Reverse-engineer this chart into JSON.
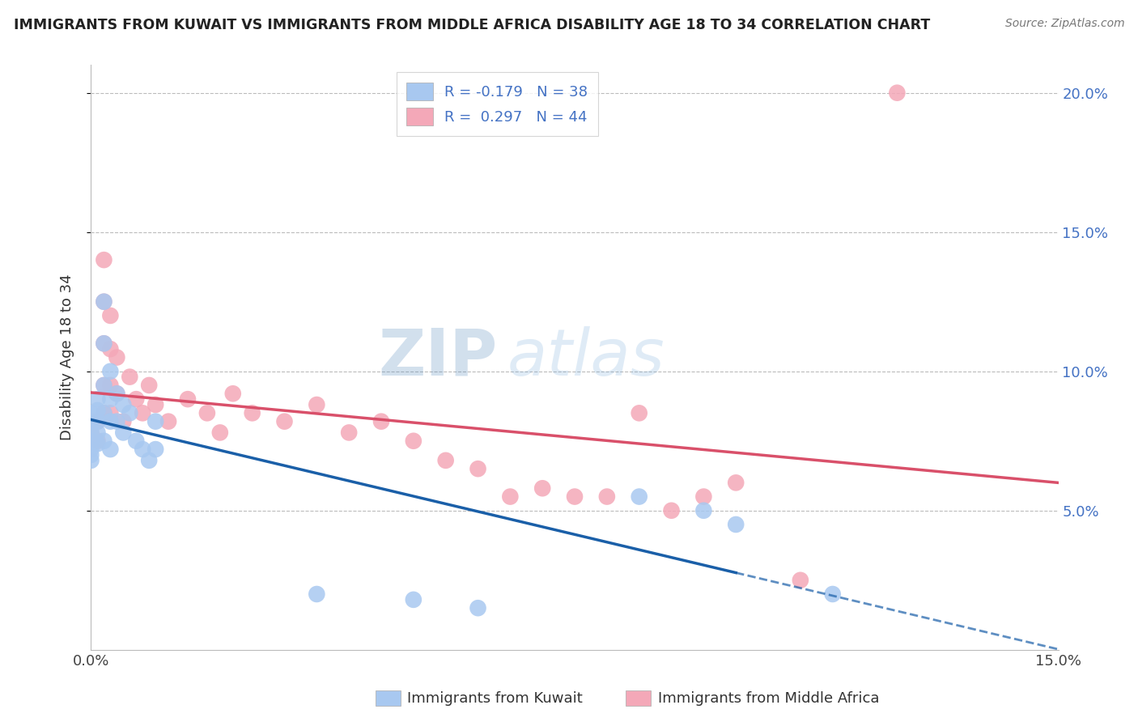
{
  "title": "IMMIGRANTS FROM KUWAIT VS IMMIGRANTS FROM MIDDLE AFRICA DISABILITY AGE 18 TO 34 CORRELATION CHART",
  "source": "Source: ZipAtlas.com",
  "ylabel": "Disability Age 18 to 34",
  "r_kuwait": -0.179,
  "n_kuwait": 38,
  "r_africa": 0.297,
  "n_africa": 44,
  "legend_label_1": "Immigrants from Kuwait",
  "legend_label_2": "Immigrants from Middle Africa",
  "color_kuwait": "#a8c8f0",
  "color_africa": "#f4a8b8",
  "line_color_kuwait": "#1a5fa8",
  "line_color_africa": "#d9506a",
  "watermark_zip": "ZIP",
  "watermark_atlas": "atlas",
  "xlim": [
    0.0,
    0.15
  ],
  "ylim": [
    0.0,
    0.21
  ],
  "kuwait_points": [
    [
      0.0,
      0.085
    ],
    [
      0.0,
      0.082
    ],
    [
      0.0,
      0.078
    ],
    [
      0.0,
      0.075
    ],
    [
      0.0,
      0.072
    ],
    [
      0.0,
      0.07
    ],
    [
      0.0,
      0.068
    ],
    [
      0.001,
      0.09
    ],
    [
      0.001,
      0.086
    ],
    [
      0.001,
      0.082
    ],
    [
      0.001,
      0.078
    ],
    [
      0.001,
      0.074
    ],
    [
      0.002,
      0.125
    ],
    [
      0.002,
      0.11
    ],
    [
      0.002,
      0.095
    ],
    [
      0.002,
      0.085
    ],
    [
      0.002,
      0.075
    ],
    [
      0.003,
      0.1
    ],
    [
      0.003,
      0.09
    ],
    [
      0.003,
      0.082
    ],
    [
      0.003,
      0.072
    ],
    [
      0.004,
      0.092
    ],
    [
      0.004,
      0.082
    ],
    [
      0.005,
      0.088
    ],
    [
      0.005,
      0.078
    ],
    [
      0.006,
      0.085
    ],
    [
      0.007,
      0.075
    ],
    [
      0.008,
      0.072
    ],
    [
      0.009,
      0.068
    ],
    [
      0.01,
      0.082
    ],
    [
      0.01,
      0.072
    ],
    [
      0.035,
      0.02
    ],
    [
      0.05,
      0.018
    ],
    [
      0.06,
      0.015
    ],
    [
      0.085,
      0.055
    ],
    [
      0.095,
      0.05
    ],
    [
      0.1,
      0.045
    ],
    [
      0.115,
      0.02
    ]
  ],
  "africa_points": [
    [
      0.0,
      0.082
    ],
    [
      0.0,
      0.078
    ],
    [
      0.001,
      0.082
    ],
    [
      0.001,
      0.075
    ],
    [
      0.002,
      0.14
    ],
    [
      0.002,
      0.125
    ],
    [
      0.002,
      0.11
    ],
    [
      0.002,
      0.095
    ],
    [
      0.002,
      0.085
    ],
    [
      0.003,
      0.12
    ],
    [
      0.003,
      0.108
    ],
    [
      0.003,
      0.095
    ],
    [
      0.003,
      0.085
    ],
    [
      0.004,
      0.105
    ],
    [
      0.004,
      0.092
    ],
    [
      0.005,
      0.082
    ],
    [
      0.006,
      0.098
    ],
    [
      0.007,
      0.09
    ],
    [
      0.008,
      0.085
    ],
    [
      0.009,
      0.095
    ],
    [
      0.01,
      0.088
    ],
    [
      0.012,
      0.082
    ],
    [
      0.015,
      0.09
    ],
    [
      0.018,
      0.085
    ],
    [
      0.02,
      0.078
    ],
    [
      0.022,
      0.092
    ],
    [
      0.025,
      0.085
    ],
    [
      0.03,
      0.082
    ],
    [
      0.035,
      0.088
    ],
    [
      0.04,
      0.078
    ],
    [
      0.045,
      0.082
    ],
    [
      0.05,
      0.075
    ],
    [
      0.055,
      0.068
    ],
    [
      0.06,
      0.065
    ],
    [
      0.065,
      0.055
    ],
    [
      0.07,
      0.058
    ],
    [
      0.075,
      0.055
    ],
    [
      0.08,
      0.055
    ],
    [
      0.085,
      0.085
    ],
    [
      0.09,
      0.05
    ],
    [
      0.095,
      0.055
    ],
    [
      0.1,
      0.06
    ],
    [
      0.125,
      0.2
    ],
    [
      0.11,
      0.025
    ]
  ]
}
